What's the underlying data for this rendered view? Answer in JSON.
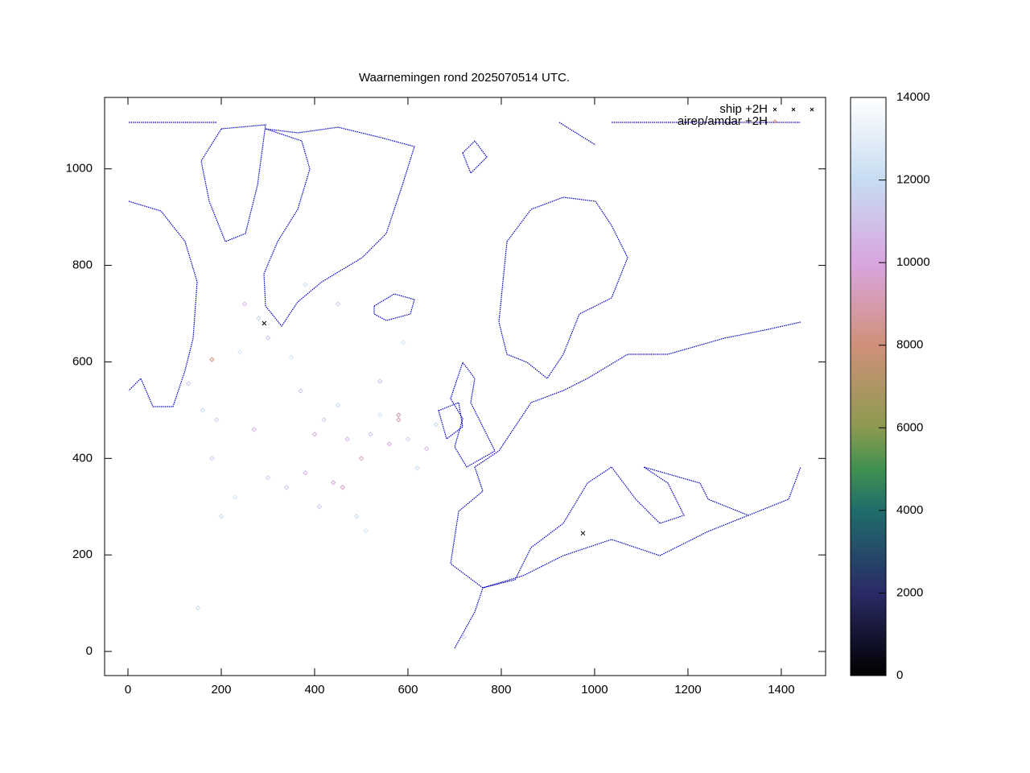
{
  "chart_data": {
    "type": "scatter",
    "title": "Waarnemingen rond 2025070514 UTC.",
    "xlim": [
      -50,
      1495
    ],
    "ylim": [
      -50,
      1148
    ],
    "xticks": [
      0,
      200,
      400,
      600,
      800,
      1000,
      1200,
      1400
    ],
    "yticks": [
      0,
      200,
      400,
      600,
      800,
      1000
    ],
    "cblim": [
      0,
      14000
    ],
    "cbticks": [
      0,
      2000,
      4000,
      6000,
      8000,
      10000,
      12000,
      14000
    ],
    "palette": [
      {
        "value": 0,
        "color": "#000000"
      },
      {
        "value": 2000,
        "color": "#2a2a66"
      },
      {
        "value": 4000,
        "color": "#1f6d6b"
      },
      {
        "value": 5000,
        "color": "#3f9150"
      },
      {
        "value": 6000,
        "color": "#8c9a4f"
      },
      {
        "value": 8000,
        "color": "#d0907a"
      },
      {
        "value": 10000,
        "color": "#d9a6e0"
      },
      {
        "value": 12000,
        "color": "#c7dcf2"
      },
      {
        "value": 14000,
        "color": "#ffffff"
      }
    ],
    "legend": "top-right",
    "series": [
      {
        "name": "ship +2H",
        "color": "#000000",
        "marker": "x",
        "x": [
          292,
          975
        ],
        "values": [
          680,
          245
        ]
      },
      {
        "name": "airep/amdar +2H",
        "marker": "diamond",
        "x": [
          130,
          160,
          190,
          240,
          250,
          280,
          300,
          350,
          370,
          400,
          420,
          450,
          470,
          500,
          520,
          540,
          560,
          580,
          600,
          620,
          640,
          660,
          340,
          380,
          410,
          440,
          460,
          490,
          510,
          300,
          200,
          180,
          230,
          270,
          150,
          720,
          540,
          590,
          450,
          380,
          180,
          580
        ],
        "values": [
          555,
          500,
          480,
          620,
          720,
          690,
          650,
          610,
          540,
          450,
          480,
          510,
          440,
          400,
          450,
          490,
          430,
          480,
          440,
          380,
          420,
          470,
          340,
          370,
          300,
          350,
          340,
          280,
          250,
          360,
          280,
          400,
          320,
          460,
          90,
          30,
          560,
          640,
          720,
          760,
          605,
          490
        ],
        "z": [
          11000,
          12000,
          11500,
          12500,
          10500,
          12000,
          11000,
          12500,
          11000,
          10000,
          11500,
          12000,
          10500,
          9500,
          11000,
          12500,
          10000,
          9000,
          11500,
          12000,
          10500,
          12000,
          11000,
          10500,
          11000,
          10000,
          9500,
          12000,
          12500,
          11500,
          12000,
          11500,
          12500,
          10500,
          12000,
          11500,
          11000,
          12500,
          11500,
          12000,
          8000,
          9000
        ]
      }
    ]
  }
}
